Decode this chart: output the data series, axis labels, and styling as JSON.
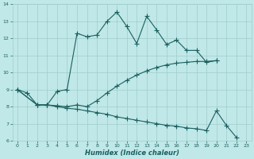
{
  "title": "",
  "xlabel": "Humidex (Indice chaleur)",
  "bg_color": "#c0e8e8",
  "grid_color": "#a0cccc",
  "line_color": "#1a5f5f",
  "line1_x": [
    0,
    1,
    2,
    3,
    4,
    5,
    6,
    7,
    8,
    9,
    10,
    11,
    12,
    13,
    14,
    15,
    16,
    17,
    18,
    19,
    20
  ],
  "line1_y": [
    9.0,
    8.8,
    8.1,
    8.1,
    8.9,
    9.0,
    12.3,
    12.1,
    12.2,
    13.0,
    13.55,
    12.7,
    11.7,
    13.3,
    12.5,
    11.65,
    11.9,
    11.3,
    11.3,
    10.6,
    10.7
  ],
  "line2_x": [
    0,
    2,
    3,
    4,
    5,
    6,
    7,
    8,
    9,
    10,
    11,
    12,
    13,
    14,
    15,
    16,
    17,
    18,
    19,
    20
  ],
  "line2_y": [
    9.0,
    8.1,
    8.1,
    8.05,
    8.0,
    8.1,
    8.0,
    8.35,
    8.8,
    9.2,
    9.55,
    9.85,
    10.1,
    10.3,
    10.45,
    10.55,
    10.6,
    10.65,
    10.65,
    10.7
  ],
  "line3_x": [
    0,
    2,
    3,
    4,
    5,
    6,
    7,
    8,
    9,
    10,
    11,
    12,
    13,
    14,
    15,
    16,
    17,
    18,
    19,
    20,
    21,
    22
  ],
  "line3_y": [
    9.0,
    8.1,
    8.1,
    8.0,
    7.9,
    7.85,
    7.75,
    7.65,
    7.55,
    7.4,
    7.3,
    7.2,
    7.1,
    7.0,
    6.9,
    6.85,
    6.75,
    6.7,
    6.6,
    7.75,
    6.9,
    6.2
  ],
  "xlim": [
    -0.5,
    23.5
  ],
  "ylim": [
    6,
    14
  ],
  "yticks": [
    6,
    7,
    8,
    9,
    10,
    11,
    12,
    13,
    14
  ],
  "xticks": [
    0,
    1,
    2,
    3,
    4,
    5,
    6,
    7,
    8,
    9,
    10,
    11,
    12,
    13,
    14,
    15,
    16,
    17,
    18,
    19,
    20,
    21,
    22,
    23
  ]
}
